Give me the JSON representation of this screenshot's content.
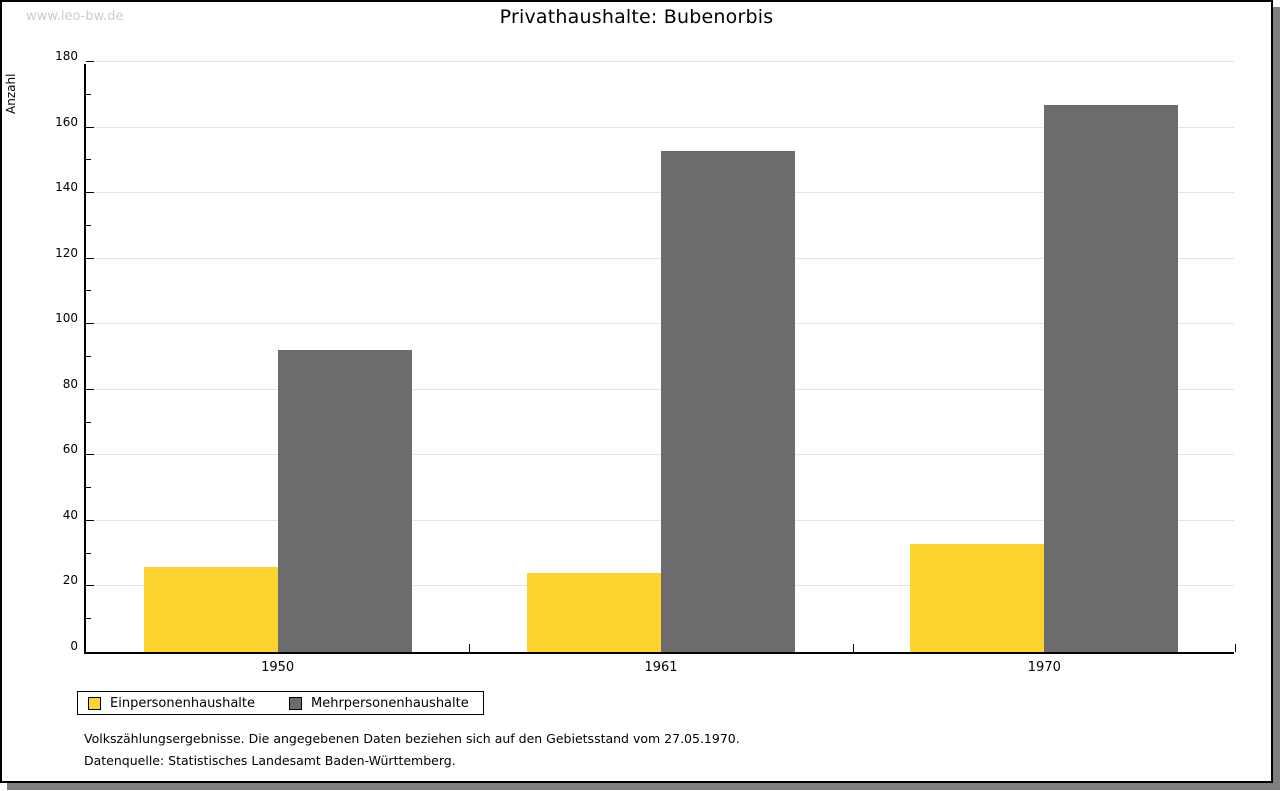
{
  "watermark": "www.leo-bw.de",
  "title": "Privathaushalte: Bubenorbis",
  "chart_data": {
    "type": "bar",
    "title": "Privathaushalte: Bubenorbis",
    "xlabel": "",
    "ylabel": "Anzahl",
    "categories": [
      "1950",
      "1961",
      "1970"
    ],
    "series": [
      {
        "name": "Einpersonenhaushalte",
        "color": "#fcd32f",
        "values": [
          26,
          24,
          33
        ]
      },
      {
        "name": "Mehrpersonenhaushalte",
        "color": "#6c6c6c",
        "values": [
          92,
          153,
          167
        ]
      }
    ],
    "ylim": [
      0,
      180
    ],
    "ytick_step": 20,
    "ytick_minor_step": 10,
    "grid": true,
    "legend_position": "bottom-left"
  },
  "footer": {
    "line1": "Volkszählungsergebnisse. Die angegebenen Daten beziehen sich auf den Gebietsstand vom 27.05.1970.",
    "line2": "Datenquelle: Statistisches Landesamt Baden-Württemberg."
  },
  "colors": {
    "bar_einpersonen": "#fcd32f",
    "bar_mehrpersonen": "#6c6c6c",
    "shadow": "#7f7f7f",
    "gridline": "#e4e4e4",
    "watermark": "#cccccc",
    "axis": "#000000"
  }
}
